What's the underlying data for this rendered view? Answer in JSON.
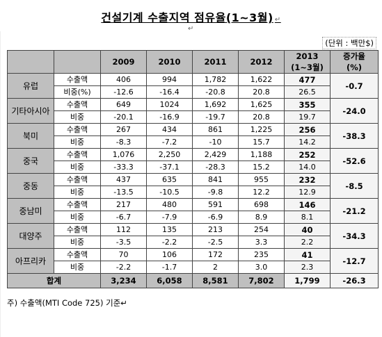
{
  "title": "건설기계 수출지역 점유율(1~3월)",
  "title_mark": "↵",
  "sub_mark": "↵",
  "unit_label": "(단위 : 백만$)",
  "headers": {
    "region": "",
    "metric": "",
    "y2009": "2009",
    "y2010": "2010",
    "y2011": "2011",
    "y2012": "2012",
    "y2013_line1": "2013",
    "y2013_line2": "(1~3월)",
    "change_line1": "증가율",
    "change_line2": "(%)"
  },
  "regions": [
    {
      "name": "유럽",
      "m1": "수출액",
      "m2": "비중(%)",
      "v": [
        "406",
        "994",
        "1,782",
        "1,622",
        "477"
      ],
      "s": [
        "-12.6",
        "-16.4",
        "-20.8",
        "20.8",
        "26.5"
      ],
      "chg": "-0.7"
    },
    {
      "name": "기타아시아",
      "m1": "수출액",
      "m2": "비중",
      "v": [
        "649",
        "1024",
        "1,692",
        "1,625",
        "355"
      ],
      "s": [
        "-20.1",
        "-16.9",
        "-19.7",
        "20.8",
        "19.7"
      ],
      "chg": "-24.0"
    },
    {
      "name": "북미",
      "m1": "수출액",
      "m2": "비중",
      "v": [
        "267",
        "434",
        "861",
        "1,225",
        "256"
      ],
      "s": [
        "-8.3",
        "-7.2",
        "-10",
        "15.7",
        "14.2"
      ],
      "chg": "-38.3"
    },
    {
      "name": "중국",
      "m1": "수출액",
      "m2": "비중",
      "v": [
        "1,076",
        "2,250",
        "2,429",
        "1,188",
        "252"
      ],
      "s": [
        "-33.3",
        "-37.1",
        "-28.3",
        "15.2",
        "14.0"
      ],
      "chg": "-52.6"
    },
    {
      "name": "중동",
      "m1": "수출액",
      "m2": "비중",
      "v": [
        "437",
        "635",
        "841",
        "955",
        "232"
      ],
      "s": [
        "-13.5",
        "-10.5",
        "-9.8",
        "12.2",
        "12.9"
      ],
      "chg": "-8.5"
    },
    {
      "name": "중남미",
      "m1": "수출액",
      "m2": "비중",
      "v": [
        "217",
        "480",
        "591",
        "698",
        "146"
      ],
      "s": [
        "-6.7",
        "-7.9",
        "-6.9",
        "8.9",
        "8.1"
      ],
      "chg": "-21.2"
    },
    {
      "name": "대양주",
      "m1": "수출액",
      "m2": "비중",
      "v": [
        "112",
        "135",
        "213",
        "254",
        "40"
      ],
      "s": [
        "-3.5",
        "-2.2",
        "-2.5",
        "3.3",
        "2.2"
      ],
      "chg": "-34.3"
    },
    {
      "name": "아프리카",
      "m1": "수출액",
      "m2": "비중",
      "v": [
        "70",
        "106",
        "172",
        "235",
        "41"
      ],
      "s": [
        "-2.2",
        "-1.7",
        "2",
        "3.0",
        "2.3"
      ],
      "chg": "-12.7"
    }
  ],
  "total": {
    "label": "합계",
    "v": [
      "3,234",
      "6,058",
      "8,581",
      "7,802",
      "1,799"
    ],
    "chg": "-26.3"
  },
  "note": "주) 수출액(MTI Code 725) 기준↵"
}
